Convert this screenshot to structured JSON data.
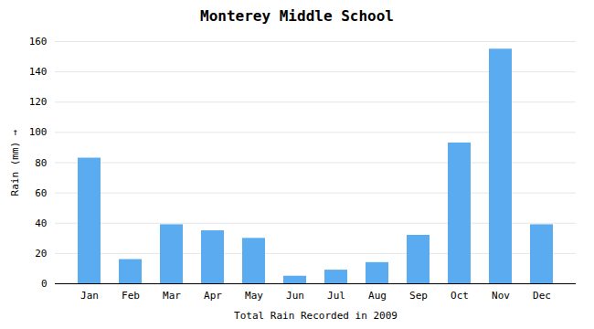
{
  "chart_data": {
    "type": "bar",
    "title": "Monterey Middle School",
    "xlabel": "Total Rain Recorded in 2009",
    "ylabel": "Rain (mm)",
    "categories": [
      "Jan",
      "Feb",
      "Mar",
      "Apr",
      "May",
      "Jun",
      "Jul",
      "Aug",
      "Sep",
      "Oct",
      "Nov",
      "Dec"
    ],
    "values": [
      83,
      16,
      39,
      35,
      30,
      5,
      9,
      14,
      32,
      93,
      155,
      39
    ],
    "color": "#5aabf0",
    "ylim": [
      0,
      160
    ],
    "yticks": [
      0,
      20,
      40,
      60,
      80,
      100,
      120,
      140,
      160
    ],
    "grid": true
  }
}
